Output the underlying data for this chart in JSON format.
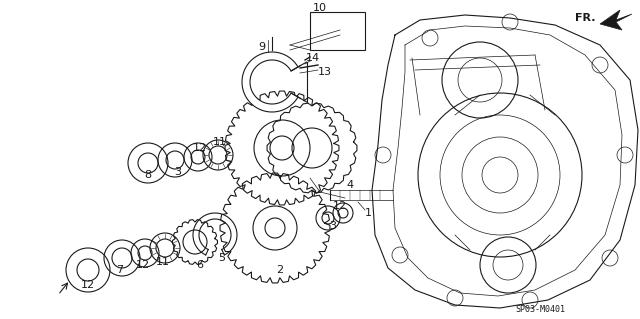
{
  "background_color": "#ffffff",
  "diagram_code": "SP03-M0401",
  "fr_label": "FR.",
  "fig_width": 6.4,
  "fig_height": 3.19,
  "dpi": 100
}
